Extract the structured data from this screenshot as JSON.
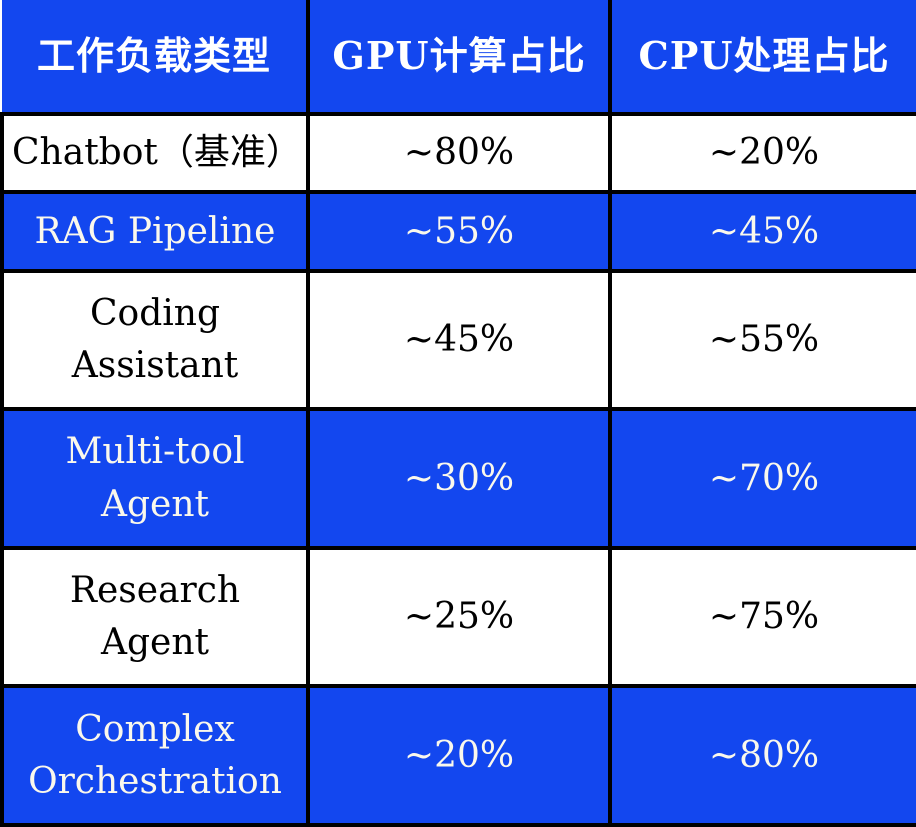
{
  "colors": {
    "header_blue": "#1347ef",
    "row_blue": "#1347ef",
    "row_white": "#ffffff",
    "text_on_blue": "#faf8ec",
    "text_on_white": "#000000",
    "grid_border": "#000000"
  },
  "table": {
    "headers": [
      "工作负载类型",
      "GPU计算占比",
      "CPU处理占比"
    ],
    "rows": [
      {
        "workload": "Chatbot（基准）",
        "gpu": "~80%",
        "cpu": "~20%"
      },
      {
        "workload": "RAG Pipeline",
        "gpu": "~55%",
        "cpu": "~45%"
      },
      {
        "workload": "Coding\nAssistant",
        "gpu": "~45%",
        "cpu": "~55%"
      },
      {
        "workload": "Multi-tool Agent",
        "gpu": "~30%",
        "cpu": "~70%"
      },
      {
        "workload": "Research Agent",
        "gpu": "~25%",
        "cpu": "~75%"
      },
      {
        "workload": "Complex\nOrchestration",
        "gpu": "~20%",
        "cpu": "~80%"
      }
    ]
  },
  "chart_data": {
    "type": "table",
    "title": "",
    "columns": [
      "工作负载类型",
      "GPU计算占比",
      "CPU处理占比"
    ],
    "rows": [
      [
        "Chatbot（基准）",
        "~80%",
        "~20%"
      ],
      [
        "RAG Pipeline",
        "~55%",
        "~45%"
      ],
      [
        "Coding Assistant",
        "~45%",
        "~55%"
      ],
      [
        "Multi-tool Agent",
        "~30%",
        "~70%"
      ],
      [
        "Research Agent",
        "~25%",
        "~75%"
      ],
      [
        "Complex Orchestration",
        "~20%",
        "~80%"
      ]
    ],
    "series": [
      {
        "name": "GPU计算占比",
        "values": [
          80,
          55,
          45,
          30,
          25,
          20
        ]
      },
      {
        "name": "CPU处理占比",
        "values": [
          20,
          45,
          55,
          70,
          75,
          80
        ]
      }
    ],
    "categories": [
      "Chatbot（基准）",
      "RAG Pipeline",
      "Coding Assistant",
      "Multi-tool Agent",
      "Research Agent",
      "Complex Orchestration"
    ],
    "value_unit": "percent_approximate"
  }
}
